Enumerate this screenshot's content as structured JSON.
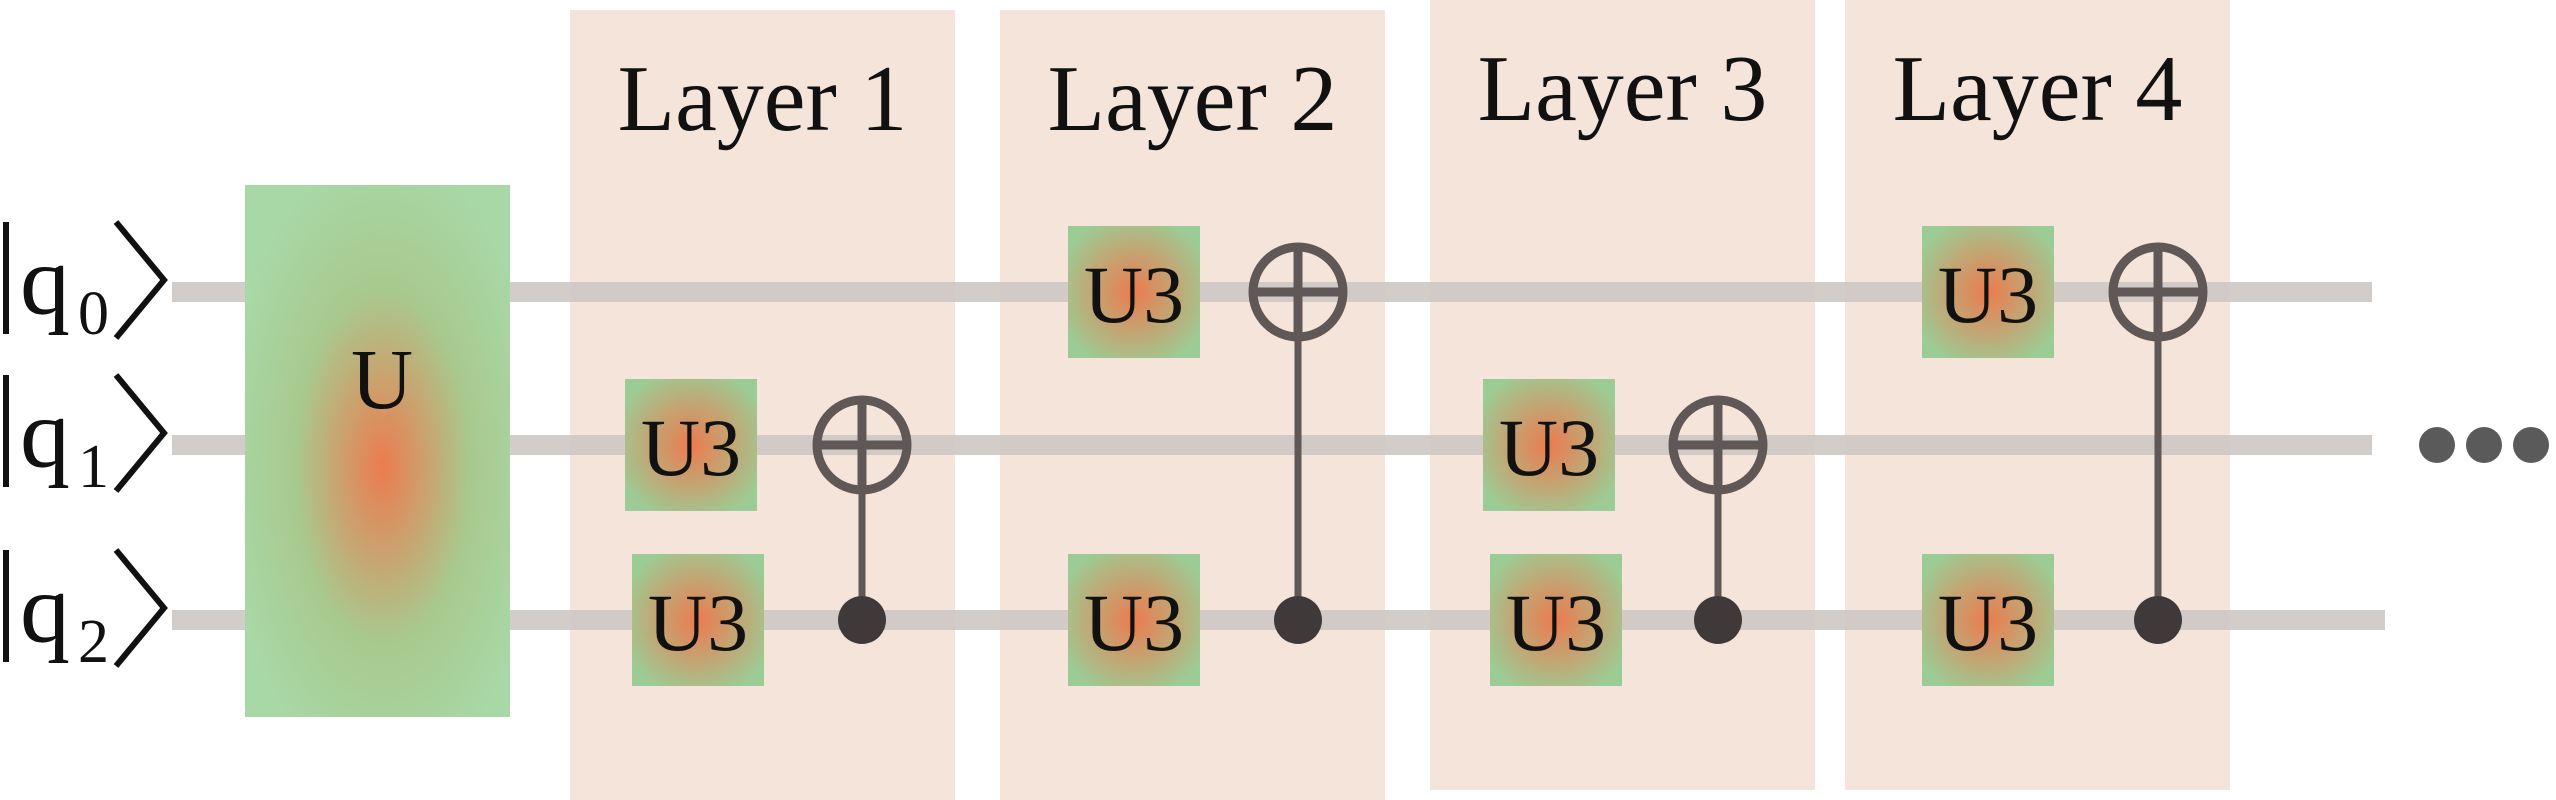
{
  "qubits": [
    {
      "base": "q",
      "sub": "0"
    },
    {
      "base": "q",
      "sub": "1"
    },
    {
      "base": "q",
      "sub": "2"
    }
  ],
  "unitary": {
    "label": "U"
  },
  "layers": [
    {
      "title": "Layer 1",
      "u3": [
        1,
        2
      ],
      "cnot": {
        "control": 2,
        "target": 1
      }
    },
    {
      "title": "Layer 2",
      "u3": [
        0,
        2
      ],
      "cnot": {
        "control": 2,
        "target": 0
      }
    },
    {
      "title": "Layer 3",
      "u3": [
        1,
        2
      ],
      "cnot": {
        "control": 2,
        "target": 1
      }
    },
    {
      "title": "Layer 4",
      "u3": [
        0,
        2
      ],
      "cnot": {
        "control": 2,
        "target": 0
      }
    }
  ],
  "gate_label": "U3",
  "colors": {
    "layer_bg": "#f4e4da",
    "wire": "#cfc8c5",
    "gate_edge": "#9ccc95",
    "gate_center": "#ec7b4f",
    "gate_stroke": "#5f5856",
    "ellipsis": "#5a5a5a"
  }
}
